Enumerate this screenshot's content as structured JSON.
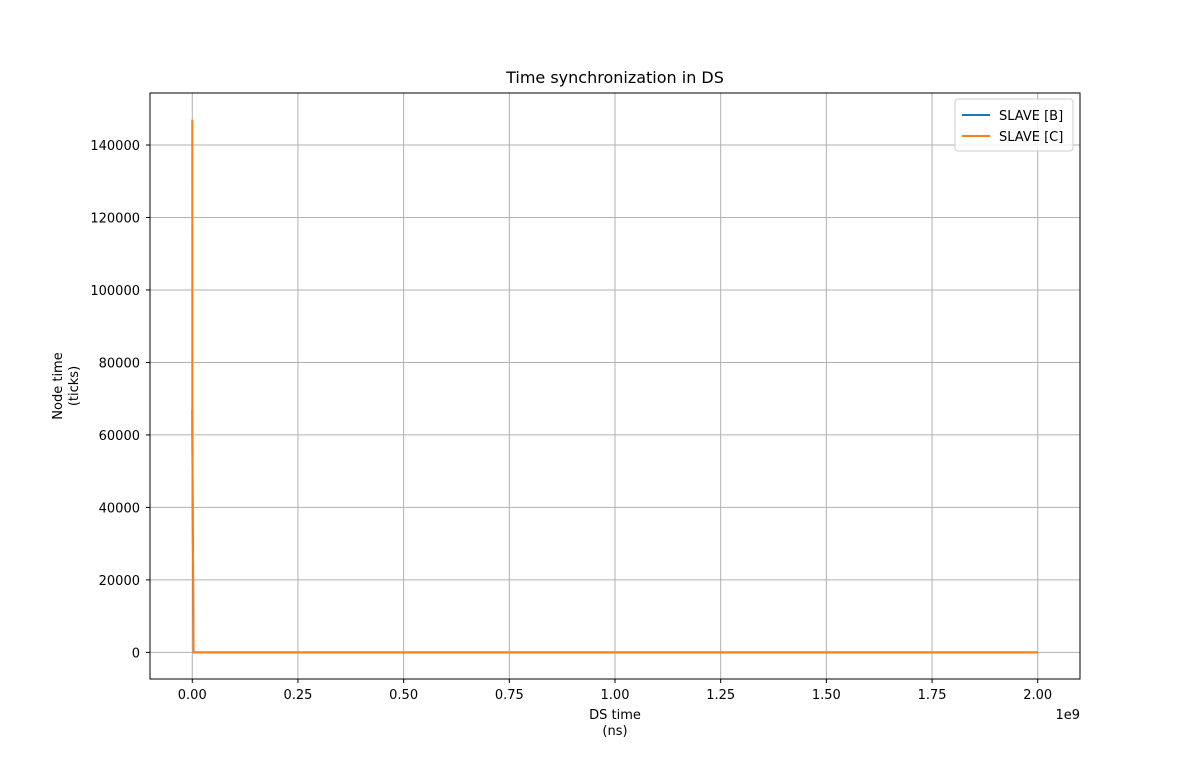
{
  "chart_data": {
    "type": "line",
    "title": "Time synchronization in DS",
    "xlabel": [
      "DS time",
      "(ns)"
    ],
    "ylabel": [
      "Node time",
      "(ticks)"
    ],
    "x_offset_label": "1e9",
    "xlim": [
      -0.1,
      2.1
    ],
    "ylim": [
      -7350,
      154350
    ],
    "x_ticks": [
      0.0,
      0.25,
      0.5,
      0.75,
      1.0,
      1.25,
      1.5,
      1.75,
      2.0
    ],
    "x_tick_labels": [
      "0.00",
      "0.25",
      "0.50",
      "0.75",
      "1.00",
      "1.25",
      "1.50",
      "1.75",
      "2.00"
    ],
    "y_ticks": [
      0,
      20000,
      40000,
      60000,
      80000,
      100000,
      120000,
      140000
    ],
    "y_tick_labels": [
      "0",
      "20000",
      "40000",
      "60000",
      "80000",
      "100000",
      "120000",
      "140000"
    ],
    "grid": true,
    "legend_position": "top-right",
    "series": [
      {
        "name": "SLAVE [B]",
        "color": "#1f77b4",
        "x": [
          0.0,
          0.0001,
          0.001,
          0.002,
          0.003,
          2.0
        ],
        "y": [
          67000,
          61000,
          40000,
          20000,
          0,
          0
        ]
      },
      {
        "name": "SLAVE [C]",
        "color": "#ff7f0e",
        "x": [
          0.0,
          0.0001,
          0.001,
          0.002,
          0.003,
          2.0
        ],
        "y": [
          147000,
          60000,
          40000,
          20000,
          0,
          0
        ]
      }
    ]
  }
}
